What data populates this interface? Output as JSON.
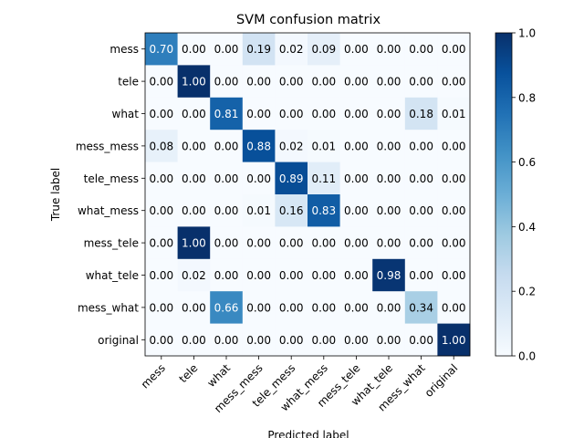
{
  "chart_data": {
    "type": "heatmap",
    "title": "SVM confusion matrix",
    "xlabel": "Predicted label",
    "ylabel": "True label",
    "row_labels": [
      "mess",
      "tele",
      "what",
      "mess_mess",
      "tele_mess",
      "what_mess",
      "mess_tele",
      "what_tele",
      "mess_what",
      "original"
    ],
    "col_labels": [
      "mess",
      "tele",
      "what",
      "mess_mess",
      "tele_mess",
      "what_mess",
      "mess_tele",
      "what_tele",
      "mess_what",
      "original"
    ],
    "values": [
      [
        0.7,
        0.0,
        0.0,
        0.19,
        0.02,
        0.09,
        0.0,
        0.0,
        0.0,
        0.0
      ],
      [
        0.0,
        1.0,
        0.0,
        0.0,
        0.0,
        0.0,
        0.0,
        0.0,
        0.0,
        0.0
      ],
      [
        0.0,
        0.0,
        0.81,
        0.0,
        0.0,
        0.0,
        0.0,
        0.0,
        0.18,
        0.01
      ],
      [
        0.08,
        0.0,
        0.0,
        0.88,
        0.02,
        0.01,
        0.0,
        0.0,
        0.0,
        0.0
      ],
      [
        0.0,
        0.0,
        0.0,
        0.0,
        0.89,
        0.11,
        0.0,
        0.0,
        0.0,
        0.0
      ],
      [
        0.0,
        0.0,
        0.0,
        0.01,
        0.16,
        0.83,
        0.0,
        0.0,
        0.0,
        0.0
      ],
      [
        0.0,
        1.0,
        0.0,
        0.0,
        0.0,
        0.0,
        0.0,
        0.0,
        0.0,
        0.0
      ],
      [
        0.0,
        0.02,
        0.0,
        0.0,
        0.0,
        0.0,
        0.0,
        0.98,
        0.0,
        0.0
      ],
      [
        0.0,
        0.0,
        0.66,
        0.0,
        0.0,
        0.0,
        0.0,
        0.0,
        0.34,
        0.0
      ],
      [
        0.0,
        0.0,
        0.0,
        0.0,
        0.0,
        0.0,
        0.0,
        0.0,
        0.0,
        1.0
      ]
    ],
    "value_format": "2 decimals",
    "colormap": "Blues",
    "color_range": [
      0.0,
      1.0
    ],
    "colorbar_ticks": [
      0.0,
      0.2,
      0.4,
      0.6,
      0.8,
      1.0
    ],
    "colorbar_tick_labels": [
      "0.0",
      "0.2",
      "0.4",
      "0.6",
      "0.8",
      "1.0"
    ],
    "text_threshold": 0.5,
    "text_color_light": "#ffffff",
    "text_color_dark": "#000000",
    "grid": false
  }
}
